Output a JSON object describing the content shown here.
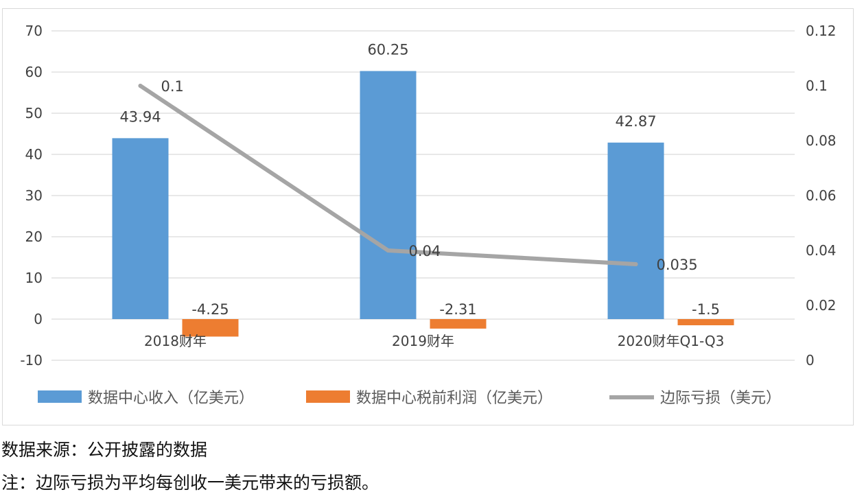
{
  "chart_data": {
    "type": "bar",
    "categories": [
      "2018财年",
      "2019财年",
      "2020财年Q1-Q3"
    ],
    "series": [
      {
        "name": "数据中心收入（亿美元）",
        "type": "bar",
        "axis": "left",
        "values": [
          43.94,
          60.25,
          42.87
        ],
        "labels": [
          "43.94",
          "60.25",
          "42.87"
        ],
        "color": "#5b9bd5"
      },
      {
        "name": "数据中心税前利润（亿美元）",
        "type": "bar",
        "axis": "left",
        "values": [
          -4.25,
          -2.31,
          -1.5
        ],
        "labels": [
          "-4.25",
          "-2.31",
          "-1.5"
        ],
        "color": "#ed7d31"
      },
      {
        "name": "边际亏损（美元）",
        "type": "line",
        "axis": "right",
        "values": [
          0.1,
          0.04,
          0.035
        ],
        "labels": [
          "0.1",
          "0.04",
          "0.035"
        ],
        "color": "#a5a5a5"
      }
    ],
    "left_axis": {
      "ylim": [
        -10,
        70
      ],
      "ticks": [
        "70",
        "60",
        "50",
        "40",
        "30",
        "20",
        "10",
        "0",
        "-10"
      ],
      "tick_values": [
        70,
        60,
        50,
        40,
        30,
        20,
        10,
        0,
        -10
      ]
    },
    "right_axis": {
      "ylim": [
        0,
        0.12
      ],
      "ticks": [
        "0.12",
        "0.1",
        "0.08",
        "0.06",
        "0.04",
        "0.02",
        "0"
      ],
      "tick_values": [
        0.12,
        0.1,
        0.08,
        0.06,
        0.04,
        0.02,
        0
      ]
    },
    "grid": true,
    "legend_position": "bottom"
  },
  "notes": {
    "source": "数据来源：公开披露的数据",
    "note": "注：边际亏损为平均每创收一美元带来的亏损额。"
  }
}
